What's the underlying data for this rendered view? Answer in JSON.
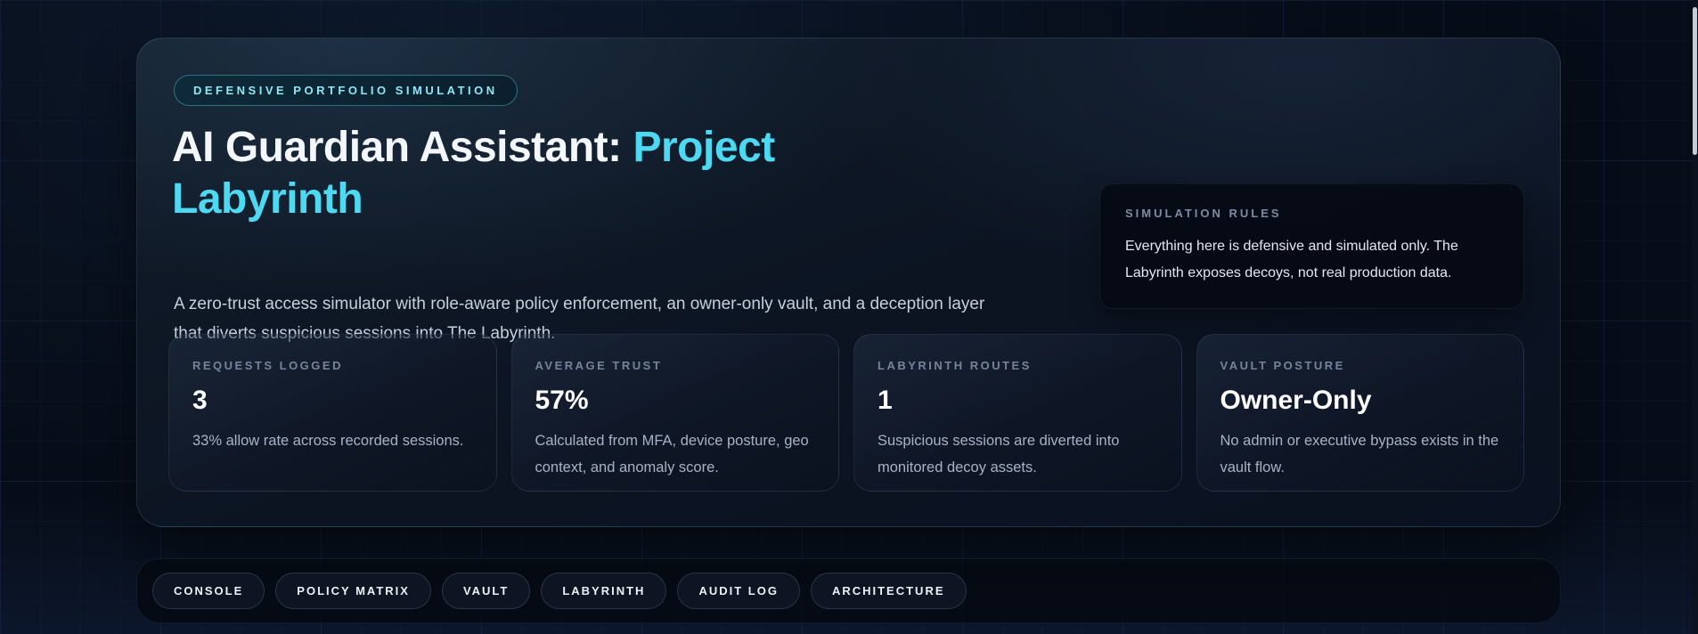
{
  "colors": {
    "accent": "#4ed9f2",
    "badge_text": "#8fe6f6",
    "page_background": "#070d18"
  },
  "hero": {
    "badge": "DEFENSIVE PORTFOLIO SIMULATION",
    "title_prefix": "AI Guardian Assistant: ",
    "title_accent": "Project Labyrinth",
    "subtitle": "A zero-trust access simulator with role-aware policy enforcement, an owner-only vault, and a deception layer that diverts suspicious sessions into The Labyrinth."
  },
  "rules_panel": {
    "label": "SIMULATION RULES",
    "body": "Everything here is defensive and simulated only. The Labyrinth exposes decoys, not real production data."
  },
  "stats": [
    {
      "label": "REQUESTS LOGGED",
      "value": "3",
      "description": "33% allow rate across recorded sessions."
    },
    {
      "label": "AVERAGE TRUST",
      "value": "57%",
      "description": "Calculated from MFA, device posture, geo context, and anomaly score."
    },
    {
      "label": "LABYRINTH ROUTES",
      "value": "1",
      "description": "Suspicious sessions are diverted into monitored decoy assets."
    },
    {
      "label": "VAULT POSTURE",
      "value": "Owner-Only",
      "description": "No admin or executive bypass exists in the vault flow."
    }
  ],
  "nav": {
    "tabs": [
      "CONSOLE",
      "POLICY MATRIX",
      "VAULT",
      "LABYRINTH",
      "AUDIT LOG",
      "ARCHITECTURE"
    ]
  }
}
